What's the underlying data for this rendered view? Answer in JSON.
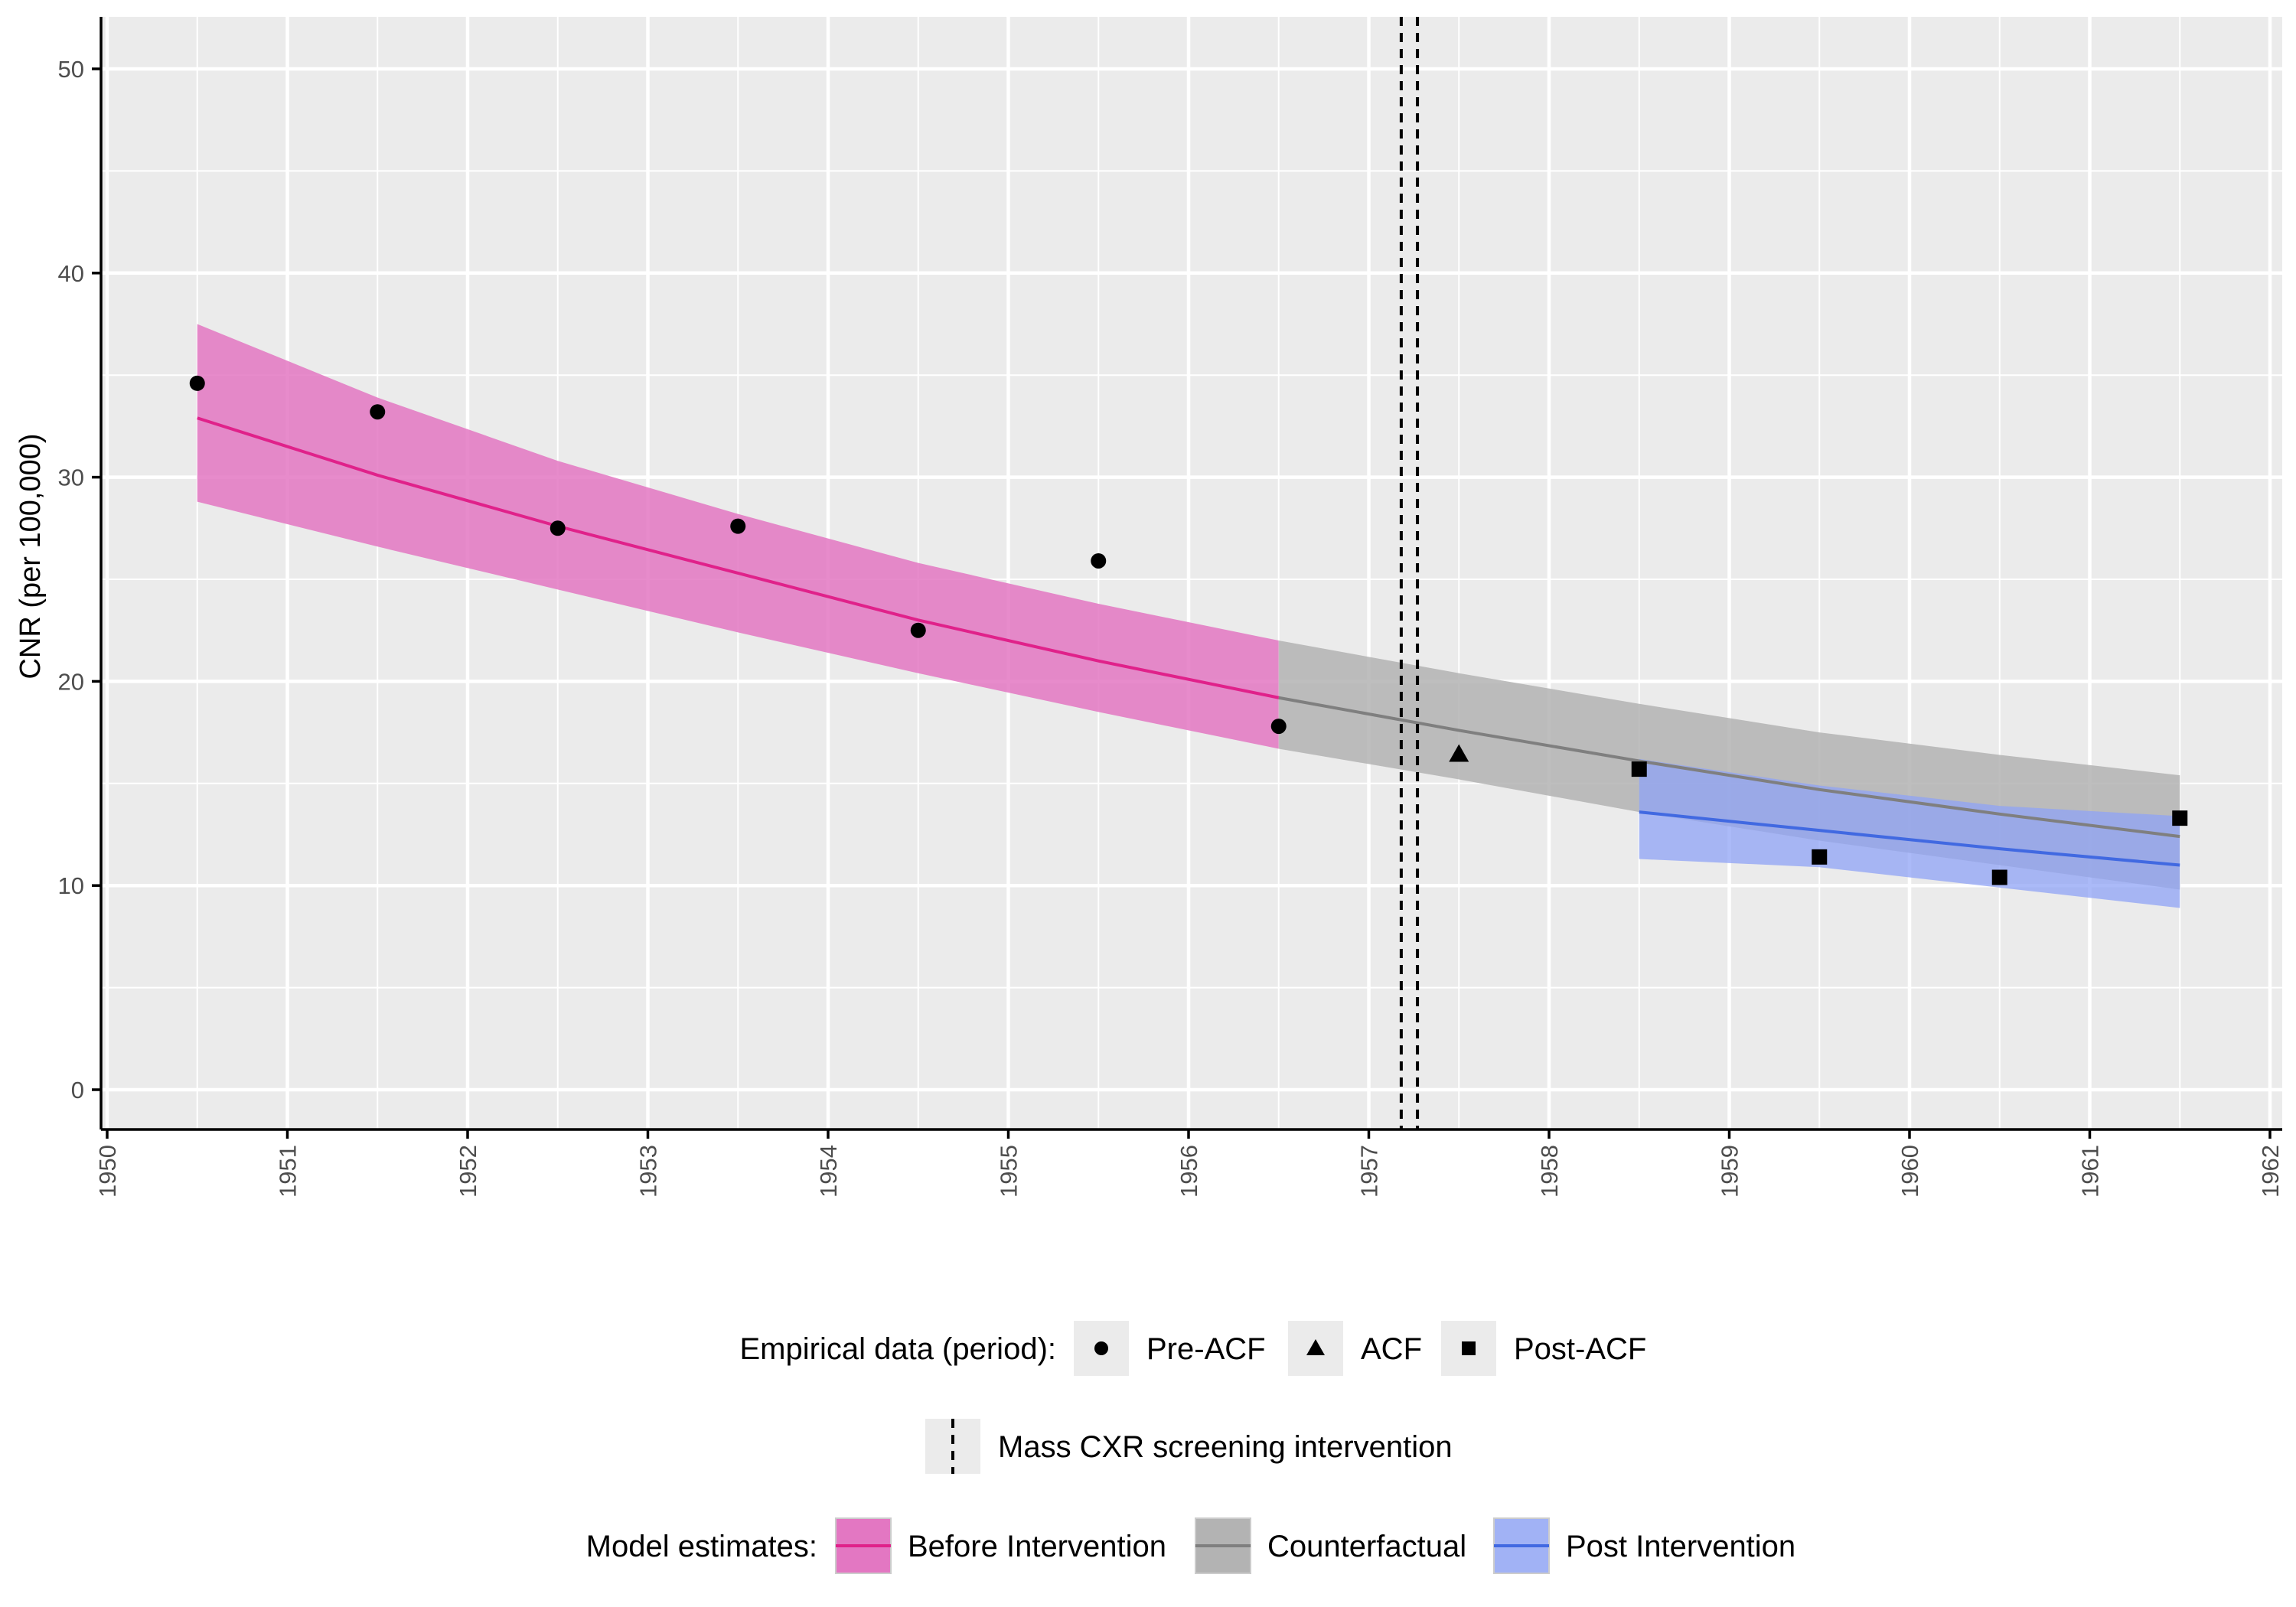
{
  "chart_data": {
    "type": "line",
    "ylabel": "CNR (per 100,000)",
    "xlabel": "",
    "xlim": [
      1950,
      1962
    ],
    "ylim": [
      0,
      50
    ],
    "x_ticks": [
      1950,
      1951,
      1952,
      1953,
      1954,
      1955,
      1956,
      1957,
      1958,
      1959,
      1960,
      1961,
      1962
    ],
    "y_ticks": [
      0,
      10,
      20,
      30,
      40,
      50
    ],
    "grid": true,
    "intervention_lines": [
      1957.18,
      1957.27
    ],
    "series": [
      {
        "name": "Before Intervention",
        "color": "#e0218a",
        "ribbon_color": "#e377c2",
        "x": [
          1950.5,
          1951.5,
          1952.5,
          1953.5,
          1954.5,
          1955.5,
          1956.5
        ],
        "y": [
          32.9,
          30.1,
          27.6,
          25.3,
          23.0,
          21.0,
          19.2
        ],
        "lower": [
          28.8,
          26.6,
          24.5,
          22.4,
          20.4,
          18.5,
          16.7
        ],
        "upper": [
          37.5,
          33.9,
          30.8,
          28.2,
          25.8,
          23.8,
          22.0
        ]
      },
      {
        "name": "Counterfactual",
        "color": "#7f7f7f",
        "ribbon_color": "#b3b3b3",
        "x": [
          1956.5,
          1957.5,
          1958.5,
          1959.5,
          1960.5,
          1961.5
        ],
        "y": [
          19.2,
          17.6,
          16.1,
          14.7,
          13.5,
          12.4
        ],
        "lower": [
          16.7,
          15.2,
          13.6,
          12.2,
          11.0,
          9.8
        ],
        "upper": [
          22.0,
          20.4,
          18.9,
          17.5,
          16.4,
          15.4
        ]
      },
      {
        "name": "Post Intervention",
        "color": "#4169e1",
        "ribbon_color": "#8fa3f5",
        "x": [
          1958.5,
          1959.5,
          1960.5,
          1961.5
        ],
        "y": [
          13.6,
          12.7,
          11.8,
          11.0
        ],
        "lower": [
          11.3,
          10.9,
          9.9,
          8.9
        ],
        "upper": [
          16.2,
          14.9,
          13.9,
          13.4
        ]
      }
    ],
    "points": [
      {
        "x": 1950.5,
        "y": 34.6,
        "period": "Pre-ACF"
      },
      {
        "x": 1951.5,
        "y": 33.2,
        "period": "Pre-ACF"
      },
      {
        "x": 1952.5,
        "y": 27.5,
        "period": "Pre-ACF"
      },
      {
        "x": 1953.5,
        "y": 27.6,
        "period": "Pre-ACF"
      },
      {
        "x": 1954.5,
        "y": 22.5,
        "period": "Pre-ACF"
      },
      {
        "x": 1955.5,
        "y": 25.9,
        "period": "Pre-ACF"
      },
      {
        "x": 1956.5,
        "y": 17.8,
        "period": "Pre-ACF"
      },
      {
        "x": 1957.5,
        "y": 16.4,
        "period": "ACF"
      },
      {
        "x": 1958.5,
        "y": 15.7,
        "period": "Post-ACF"
      },
      {
        "x": 1959.5,
        "y": 11.4,
        "period": "Post-ACF"
      },
      {
        "x": 1960.5,
        "y": 10.4,
        "period": "Post-ACF"
      },
      {
        "x": 1961.5,
        "y": 13.3,
        "period": "Post-ACF"
      }
    ]
  },
  "legend": {
    "empirical_title": "Empirical data (period):",
    "empirical_items": [
      {
        "label": "Pre-ACF",
        "shape": "circle"
      },
      {
        "label": "ACF",
        "shape": "triangle"
      },
      {
        "label": "Post-ACF",
        "shape": "square"
      }
    ],
    "intervention_label": "Mass CXR screening intervention",
    "model_title": "Model estimates:",
    "model_items": [
      {
        "label": "Before Intervention"
      },
      {
        "label": "Counterfactual"
      },
      {
        "label": "Post Intervention"
      }
    ]
  },
  "colors": {
    "panel_bg": "#ebebeb",
    "grid": "#ffffff",
    "axis": "#000000",
    "legend_key_bg": "#ebebeb"
  }
}
